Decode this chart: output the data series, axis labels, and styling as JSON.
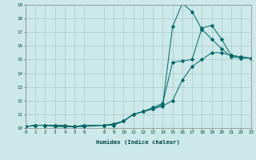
{
  "xlabel": "Humidex (Indice chaleur)",
  "bg_color": "#cce8e8",
  "line_color": "#006666",
  "grid_color": "#aacccc",
  "xlim": [
    0,
    23
  ],
  "ylim": [
    10,
    19
  ],
  "xticks": [
    0,
    1,
    2,
    3,
    4,
    5,
    6,
    8,
    9,
    10,
    11,
    12,
    13,
    14,
    15,
    16,
    17,
    18,
    19,
    20,
    21,
    22,
    23
  ],
  "yticks": [
    10,
    11,
    12,
    13,
    14,
    15,
    16,
    17,
    18,
    19
  ],
  "line1_x": [
    0,
    1,
    2,
    3,
    4,
    5,
    6,
    8,
    9,
    10,
    11,
    12,
    13,
    14,
    15,
    16,
    17,
    18,
    19,
    20,
    21,
    22,
    23
  ],
  "line1_y": [
    10.1,
    10.2,
    10.2,
    10.2,
    10.1,
    10.1,
    10.1,
    10.2,
    10.2,
    10.5,
    11.0,
    11.2,
    11.5,
    11.8,
    14.8,
    14.9,
    15.0,
    17.3,
    17.5,
    16.5,
    15.3,
    15.2,
    15.1
  ],
  "line2_x": [
    0,
    1,
    2,
    3,
    4,
    5,
    6,
    8,
    9,
    10,
    11,
    12,
    13,
    14,
    15,
    16,
    17,
    18,
    19,
    20,
    21,
    22,
    23
  ],
  "line2_y": [
    10.1,
    10.2,
    10.2,
    10.1,
    10.1,
    10.1,
    10.2,
    10.2,
    10.3,
    10.5,
    11.0,
    11.2,
    11.4,
    11.7,
    17.4,
    19.1,
    18.5,
    17.2,
    16.5,
    15.8,
    15.2,
    15.1,
    15.1
  ],
  "line3_x": [
    0,
    1,
    2,
    3,
    4,
    5,
    6,
    8,
    9,
    10,
    11,
    12,
    13,
    14,
    15,
    16,
    17,
    18,
    19,
    20,
    21,
    22,
    23
  ],
  "line3_y": [
    10.1,
    10.2,
    10.2,
    10.2,
    10.2,
    10.1,
    10.2,
    10.2,
    10.3,
    10.5,
    11.0,
    11.2,
    11.4,
    11.6,
    12.0,
    13.5,
    14.5,
    15.0,
    15.5,
    15.5,
    15.3,
    15.2,
    15.1
  ]
}
